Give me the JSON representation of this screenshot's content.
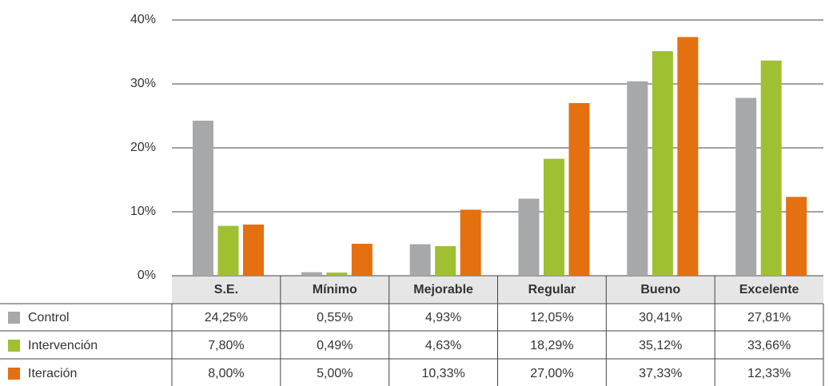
{
  "chart_data": {
    "type": "bar",
    "categories": [
      "S.E.",
      "Mínimo",
      "Mejorable",
      "Regular",
      "Bueno",
      "Excelente"
    ],
    "series": [
      {
        "name": "Control",
        "color": "#a7a8aa",
        "values": [
          24.25,
          0.55,
          4.93,
          12.05,
          30.41,
          27.81
        ],
        "value_labels": [
          "24,25%",
          "0,55%",
          "4,93%",
          "12,05%",
          "30,41%",
          "27,81%"
        ]
      },
      {
        "name": "Intervención",
        "color": "#9fc031",
        "values": [
          7.8,
          0.49,
          4.63,
          18.29,
          35.12,
          33.66
        ],
        "value_labels": [
          "7,80%",
          "0,49%",
          "4,63%",
          "18,29%",
          "35,12%",
          "33,66%"
        ]
      },
      {
        "name": "Iteración",
        "color": "#e5700f",
        "values": [
          8.0,
          5.0,
          10.33,
          27.0,
          37.33,
          12.33
        ],
        "value_labels": [
          "8,00%",
          "5,00%",
          "10,33%",
          "27,00%",
          "37,33%",
          "12,33%"
        ]
      }
    ],
    "ylim": [
      0,
      40
    ],
    "yticks": [
      {
        "value": 0,
        "label": "0%"
      },
      {
        "value": 10,
        "label": "10%"
      },
      {
        "value": 20,
        "label": "20%"
      },
      {
        "value": 30,
        "label": "30%"
      },
      {
        "value": 40,
        "label": "40%"
      }
    ],
    "grid": true
  }
}
